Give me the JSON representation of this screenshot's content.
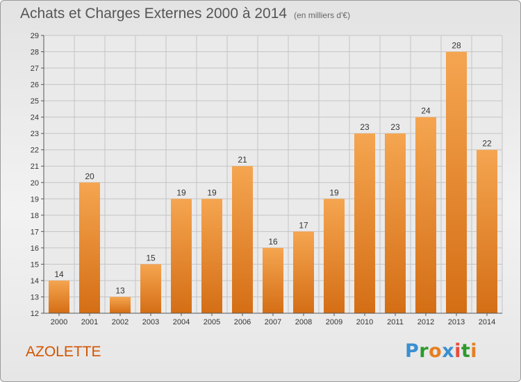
{
  "header": {
    "title": "Achats et Charges Externes 2000 à 2014",
    "unit": "(en milliers d'€)"
  },
  "footer": {
    "commune": "AZOLETTE",
    "logo_text": [
      "P",
      "r",
      "o",
      "x",
      "i",
      "t",
      "i"
    ],
    "logo_colors": [
      "#3a8fd0",
      "#2d9a2d",
      "#e67e22",
      "#3a8fd0",
      "#e74c3c",
      "#2d9a2d",
      "#e67e22"
    ]
  },
  "colors": {
    "bar_light": "#f5a550",
    "bar_dark": "#d46e15",
    "grid": "#c4c4c4",
    "axis": "#555555"
  },
  "chart_data": {
    "type": "bar",
    "categories": [
      "2000",
      "2001",
      "2002",
      "2003",
      "2004",
      "2005",
      "2006",
      "2007",
      "2008",
      "2009",
      "2010",
      "2011",
      "2012",
      "2013",
      "2014"
    ],
    "values": [
      14,
      20,
      13,
      15,
      19,
      19,
      21,
      16,
      17,
      19,
      23,
      23,
      24,
      28,
      22
    ],
    "title": "Achats et Charges Externes 2000 à 2014",
    "xlabel": "",
    "ylabel": "",
    "ylim": [
      12,
      29
    ],
    "yticks": [
      12,
      13,
      14,
      15,
      16,
      17,
      18,
      19,
      20,
      21,
      22,
      23,
      24,
      25,
      26,
      27,
      28,
      29
    ],
    "grid": true,
    "data_labels": true
  }
}
